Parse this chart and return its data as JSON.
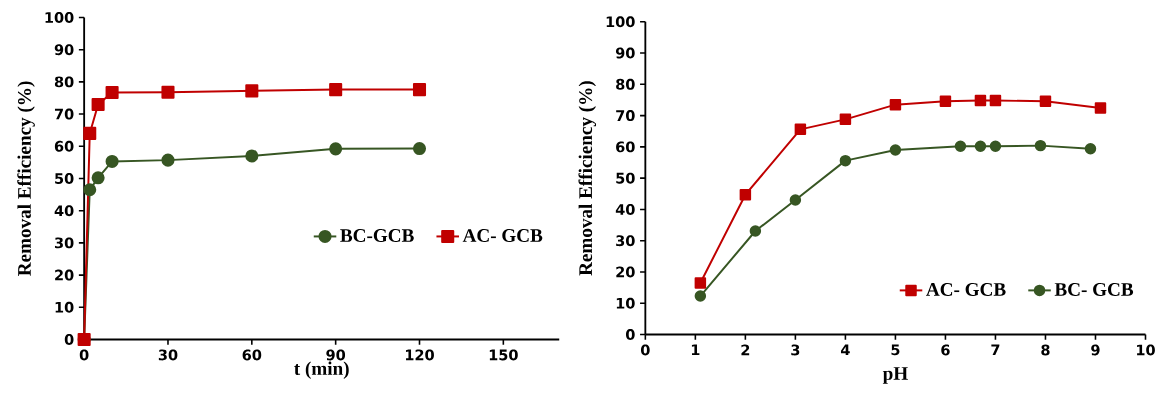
{
  "chart_data": [
    {
      "type": "line",
      "xlabel": "t (min)",
      "ylabel": "Removal Efficiency (%)",
      "xlim": [
        0,
        170
      ],
      "xticks": [
        0,
        30,
        60,
        90,
        120,
        150
      ],
      "ylim": [
        0,
        100
      ],
      "yticks": [
        0,
        10,
        20,
        30,
        40,
        50,
        60,
        70,
        80,
        90,
        100
      ],
      "legend": "right",
      "grid": false,
      "series": [
        {
          "name": "BC-GCB",
          "color": "#375623",
          "marker": "circle",
          "x": [
            0,
            2,
            5,
            10,
            30,
            60,
            90,
            120
          ],
          "values": [
            0,
            46.5,
            50.2,
            55.3,
            55.7,
            57,
            59.2,
            59.3
          ]
        },
        {
          "name": "AC- GCB",
          "color": "#c00000",
          "marker": "square",
          "x": [
            0,
            2,
            5,
            10,
            30,
            60,
            90,
            120
          ],
          "values": [
            0,
            64,
            73,
            76.7,
            76.8,
            77.2,
            77.6,
            77.6
          ]
        }
      ]
    },
    {
      "type": "line",
      "xlabel": "pH",
      "ylabel": "Removal Efficiency (%)",
      "xlim": [
        0,
        10
      ],
      "xticks": [
        0,
        1,
        2,
        3,
        4,
        5,
        6,
        7,
        8,
        9,
        10
      ],
      "ylim": [
        0,
        100
      ],
      "yticks": [
        0,
        10,
        20,
        30,
        40,
        50,
        60,
        70,
        80,
        90,
        100
      ],
      "legend": "bottom right",
      "grid": false,
      "series": [
        {
          "name": "AC- GCB",
          "color": "#c00000",
          "marker": "square",
          "x": [
            1.1,
            2,
            3.1,
            4,
            5,
            6,
            6.7,
            7,
            8,
            9.1
          ],
          "values": [
            16.5,
            44.7,
            65.6,
            68.8,
            73.5,
            74.6,
            74.8,
            74.8,
            74.6,
            72.4
          ]
        },
        {
          "name": "BC- GCB",
          "color": "#375623",
          "marker": "circle",
          "x": [
            1.1,
            2.2,
            3,
            4,
            5,
            6.3,
            6.7,
            7,
            7.9,
            8.9
          ],
          "values": [
            12.3,
            33.1,
            43,
            55.6,
            59,
            60.2,
            60.2,
            60.2,
            60.4,
            59.4
          ]
        }
      ]
    }
  ]
}
